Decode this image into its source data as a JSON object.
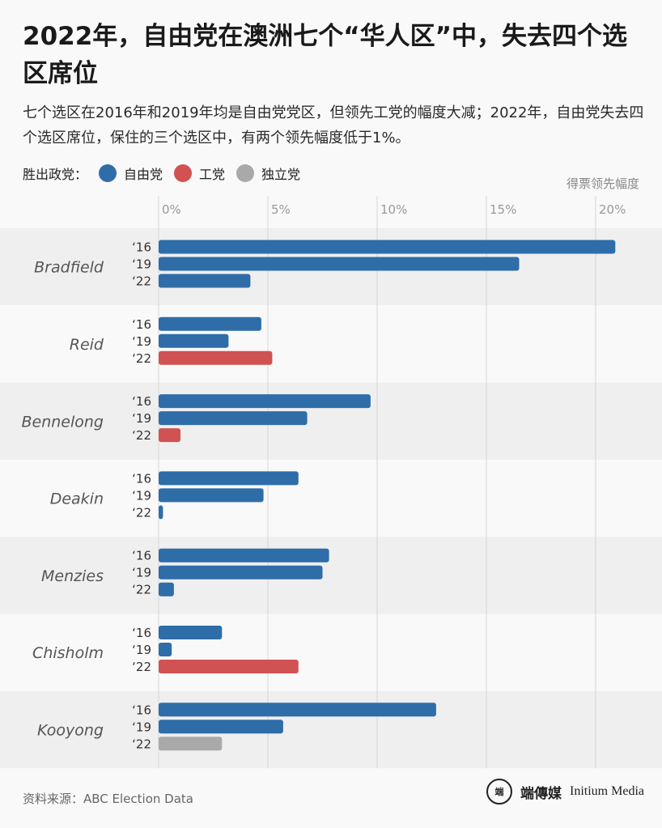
{
  "title": "2022年，自由党在澳洲七个“华人区”中，失去四个选区席位",
  "subtitle": "七个选区在2016年和2019年均是自由党党区，但领先工党的幅度大减；2022年，自由党失去四个选区席位，保住的三个选区中，有两个领先幅度低于1%。",
  "legend": {
    "title": "胜出政党：",
    "items": [
      {
        "label": "自由党",
        "color": "#2e6da8"
      },
      {
        "label": "工党",
        "color": "#d05252"
      },
      {
        "label": "独立党",
        "color": "#a9a9a9"
      }
    ]
  },
  "axis_note": "得票领先幅度",
  "source": "资料来源：ABC Election Data",
  "logo": {
    "mark": "端",
    "cn": "端傳媒",
    "en": "Initium Media"
  },
  "chart_data": {
    "type": "bar",
    "orientation": "horizontal",
    "xlim": [
      0,
      22
    ],
    "xticks": [
      0,
      5,
      10,
      15,
      20
    ],
    "xtick_labels": [
      "0%",
      "5%",
      "10%",
      "15%",
      "20%"
    ],
    "year_labels": [
      "‘16",
      "‘19",
      "‘22"
    ],
    "party_colors": {
      "自由党": "#2e6da8",
      "工党": "#d05252",
      "独立党": "#a9a9a9"
    },
    "groups": [
      {
        "name": "Bradfield",
        "values": [
          20.9,
          16.5,
          4.2
        ],
        "winners": [
          "自由党",
          "自由党",
          "自由党"
        ]
      },
      {
        "name": "Reid",
        "values": [
          4.7,
          3.2,
          5.2
        ],
        "winners": [
          "自由党",
          "自由党",
          "工党"
        ]
      },
      {
        "name": "Bennelong",
        "values": [
          9.7,
          6.8,
          1.0
        ],
        "winners": [
          "自由党",
          "自由党",
          "工党"
        ]
      },
      {
        "name": "Deakin",
        "values": [
          6.4,
          4.8,
          0.2
        ],
        "winners": [
          "自由党",
          "自由党",
          "自由党"
        ]
      },
      {
        "name": "Menzies",
        "values": [
          7.8,
          7.5,
          0.7
        ],
        "winners": [
          "自由党",
          "自由党",
          "自由党"
        ]
      },
      {
        "name": "Chisholm",
        "values": [
          2.9,
          0.6,
          6.4
        ],
        "winners": [
          "自由党",
          "自由党",
          "工党"
        ]
      },
      {
        "name": "Kooyong",
        "values": [
          12.7,
          5.7,
          2.9
        ],
        "winners": [
          "自由党",
          "自由党",
          "独立党"
        ]
      }
    ]
  }
}
